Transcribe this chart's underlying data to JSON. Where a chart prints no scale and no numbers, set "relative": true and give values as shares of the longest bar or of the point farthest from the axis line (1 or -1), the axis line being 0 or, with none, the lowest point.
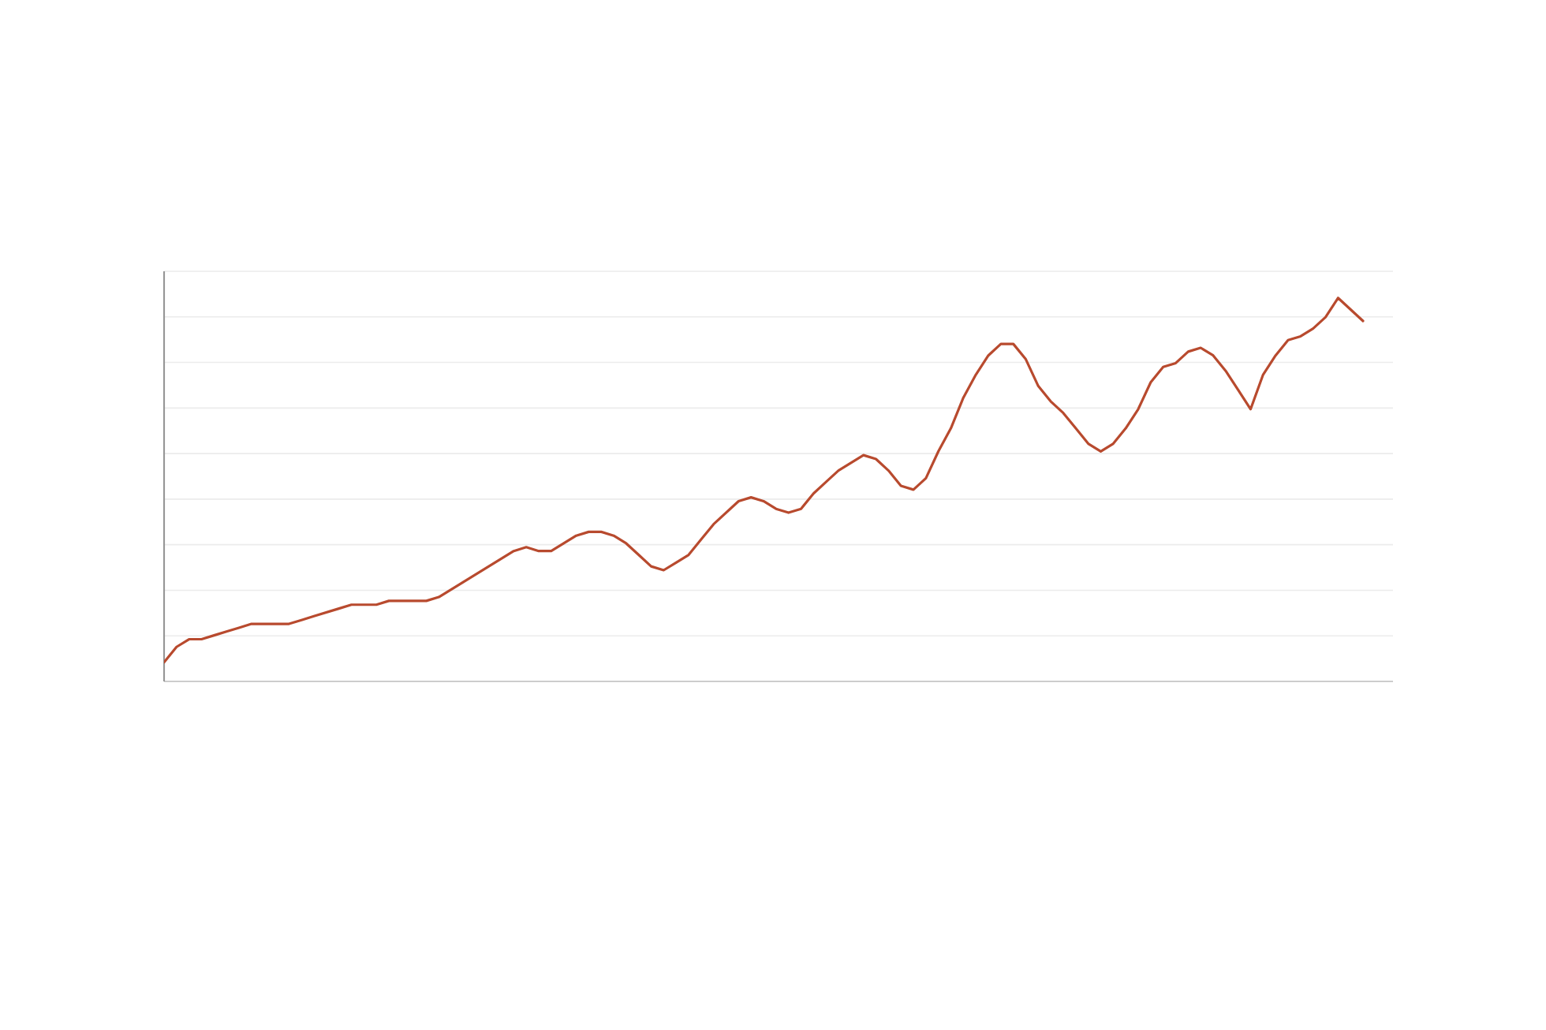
{
  "chart_data": {
    "type": "line",
    "relative": true,
    "categories": [
      null,
      null,
      null,
      null,
      null,
      null,
      null,
      null,
      null,
      null,
      null,
      null,
      null,
      null,
      null,
      null,
      null,
      null,
      null,
      null,
      null,
      null,
      null,
      null,
      null,
      null,
      null,
      null,
      null,
      null,
      null,
      null,
      null,
      null,
      null,
      null,
      null,
      null,
      null,
      null,
      null,
      null,
      null,
      null,
      null,
      null,
      null,
      null,
      null,
      null,
      null,
      null,
      null,
      null,
      null,
      null,
      null,
      null,
      null,
      null,
      null,
      null,
      null,
      null,
      null,
      null,
      null,
      null,
      null,
      null,
      null,
      null,
      null,
      null,
      null,
      null,
      null,
      null,
      null,
      null,
      null,
      null,
      null,
      null,
      null,
      null,
      null,
      null,
      null,
      null,
      null,
      null,
      null,
      null,
      null,
      null,
      null
    ],
    "series": [
      {
        "color": "#b84a2e",
        "values": [
          0.05,
          0.09,
          0.11,
          0.11,
          0.12,
          0.13,
          0.14,
          0.15,
          0.15,
          0.15,
          0.15,
          0.16,
          0.17,
          0.18,
          0.19,
          0.2,
          0.2,
          0.2,
          0.21,
          0.21,
          0.21,
          0.21,
          0.22,
          0.24,
          0.26,
          0.28,
          0.3,
          0.32,
          0.34,
          0.35,
          0.34,
          0.34,
          0.36,
          0.38,
          0.39,
          0.39,
          0.38,
          0.36,
          0.33,
          0.3,
          0.29,
          0.31,
          0.33,
          0.37,
          0.41,
          0.44,
          0.47,
          0.48,
          0.47,
          0.45,
          0.44,
          0.45,
          0.49,
          0.52,
          0.55,
          0.57,
          0.59,
          0.58,
          0.55,
          0.51,
          0.5,
          0.53,
          0.6,
          0.66,
          0.74,
          0.8,
          0.85,
          0.88,
          0.88,
          0.84,
          0.77,
          0.73,
          0.7,
          0.66,
          0.62,
          0.6,
          0.62,
          0.66,
          0.71,
          0.78,
          0.82,
          0.83,
          0.86,
          0.87,
          0.85,
          0.81,
          0.76,
          0.71,
          0.8,
          0.85,
          0.89,
          0.9,
          0.92,
          0.95,
          1,
          0.97,
          0.94
        ]
      }
    ],
    "grid": "y",
    "marker": "none",
    "line_style": "solid"
  }
}
